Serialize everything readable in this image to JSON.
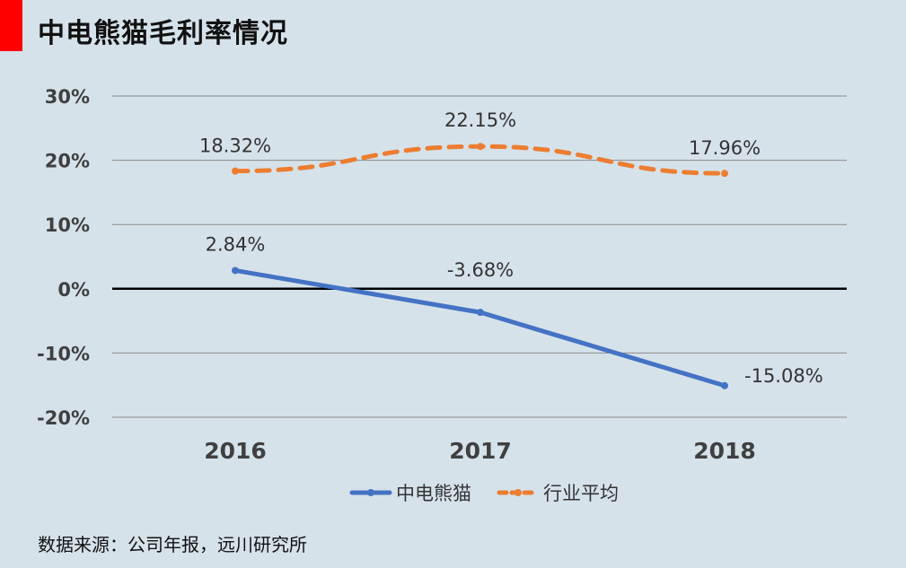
{
  "title": "中电熊猫毛利率情况",
  "source": "数据来源：公司年报，远川研究所",
  "colors": {
    "accent": "#ff0000",
    "background": "#d6e2ea",
    "series1": "#4472c4",
    "series2": "#ed7d31",
    "gridline": "#8a8a8a",
    "zeroline": "#000000",
    "text": "#404040"
  },
  "chart_data": {
    "type": "line",
    "categories": [
      "2016",
      "2017",
      "2018"
    ],
    "series": [
      {
        "name": "中电熊猫",
        "values": [
          2.84,
          -3.68,
          -15.08
        ],
        "labels": [
          "2.84%",
          "-3.68%",
          "-15.08%"
        ],
        "style": "solid",
        "color": "#4472c4"
      },
      {
        "name": "行业平均",
        "values": [
          18.32,
          22.15,
          17.96
        ],
        "labels": [
          "18.32%",
          "22.15%",
          "17.96%"
        ],
        "style": "dashed",
        "color": "#ed7d31"
      }
    ],
    "y_ticks": [
      30,
      20,
      10,
      0,
      -10,
      -20
    ],
    "y_tick_labels": [
      "30%",
      "20%",
      "10%",
      "0%",
      "-10%",
      "-20%"
    ],
    "ylim": [
      -20,
      30
    ],
    "grid": true,
    "legend_position": "bottom"
  }
}
